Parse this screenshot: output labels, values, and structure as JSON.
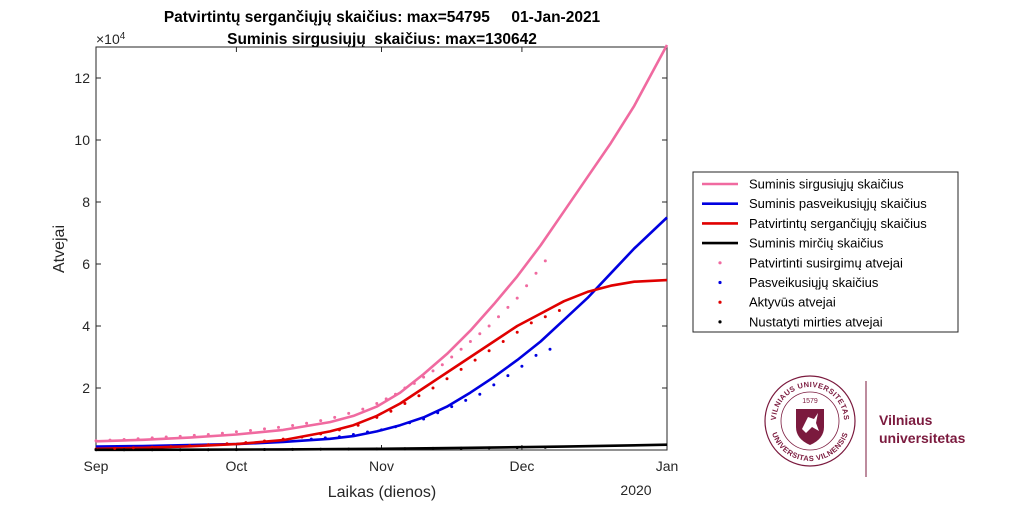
{
  "chart_data": {
    "type": "line",
    "title_line1": "Patvirtintų sergančiųjų skaičius: max=54795     01-Jan-2021",
    "title_line2": "Suminis sirgusiųjų  skaičius: max=130642",
    "xlabel": "Laikas (dienos)",
    "ylabel": "Atvejai",
    "x_year_label": "2020",
    "y_exponent_label": "×10",
    "y_exponent_power": "4",
    "x_ticks": [
      {
        "label": "Sep",
        "day": 0
      },
      {
        "label": "Oct",
        "day": 30
      },
      {
        "label": "Nov",
        "day": 61
      },
      {
        "label": "Dec",
        "day": 91
      },
      {
        "label": "Jan",
        "day": 122
      }
    ],
    "xlim_days": [
      0,
      122
    ],
    "ylim": [
      0,
      130000
    ],
    "y_ticks": [
      {
        "label": "2",
        "value": 20000
      },
      {
        "label": "4",
        "value": 40000
      },
      {
        "label": "6",
        "value": 60000
      },
      {
        "label": "8",
        "value": 80000
      },
      {
        "label": "10",
        "value": 100000
      },
      {
        "label": "12",
        "value": 120000
      }
    ],
    "grid": false,
    "legend_position": "right",
    "series": [
      {
        "name": "Suminis sirgusiųjų skaičius",
        "kind": "line",
        "color": "#f06aa0",
        "x": [
          0,
          10,
          20,
          30,
          40,
          50,
          55,
          60,
          65,
          70,
          75,
          80,
          85,
          90,
          95,
          100,
          105,
          110,
          115,
          122
        ],
        "y": [
          2800,
          3300,
          4000,
          5000,
          6500,
          9000,
          11000,
          14000,
          18500,
          24500,
          31000,
          38500,
          47000,
          56000,
          66000,
          77000,
          88000,
          99000,
          111000,
          130642
        ]
      },
      {
        "name": "Suminis pasveikusiųjų skaičius",
        "kind": "line",
        "color": "#0000e0",
        "x": [
          0,
          10,
          20,
          30,
          40,
          50,
          55,
          60,
          65,
          70,
          75,
          80,
          85,
          90,
          95,
          100,
          105,
          110,
          115,
          122
        ],
        "y": [
          1100,
          1300,
          1600,
          1900,
          2600,
          3600,
          4500,
          6000,
          8000,
          10500,
          14000,
          18500,
          23500,
          29000,
          35000,
          42000,
          49000,
          57000,
          65000,
          75000
        ]
      },
      {
        "name": "Patvirtintų sergančiųjų skaičius",
        "kind": "line",
        "color": "#e00000",
        "x": [
          0,
          10,
          20,
          30,
          40,
          50,
          55,
          60,
          65,
          70,
          75,
          80,
          85,
          90,
          95,
          100,
          105,
          110,
          115,
          122
        ],
        "y": [
          400,
          700,
          1200,
          1900,
          3200,
          6000,
          8000,
          11000,
          15000,
          20000,
          25000,
          30000,
          35000,
          40000,
          44000,
          48000,
          51000,
          53000,
          54300,
          54795
        ]
      },
      {
        "name": "Suminis mirčių skaičius",
        "kind": "line",
        "color": "#000000",
        "x": [
          0,
          20,
          40,
          60,
          80,
          100,
          122
        ],
        "y": [
          50,
          100,
          200,
          400,
          700,
          1100,
          1700
        ]
      },
      {
        "name": "Patvirtinti susirgimų atvejai",
        "kind": "scatter",
        "color": "#f06aa0",
        "x": [
          0,
          3,
          6,
          9,
          12,
          15,
          18,
          21,
          24,
          27,
          30,
          33,
          36,
          39,
          42,
          45,
          48,
          51,
          54,
          57,
          60,
          62,
          64,
          66,
          68,
          70,
          72,
          74,
          76,
          78,
          80,
          82,
          84,
          86,
          88,
          90,
          92,
          94,
          96
        ],
        "y": [
          3000,
          3200,
          3400,
          3600,
          3900,
          4200,
          4400,
          4700,
          5000,
          5400,
          5900,
          6300,
          6800,
          7300,
          7900,
          8600,
          9500,
          10500,
          11800,
          13200,
          15000,
          16500,
          18000,
          20000,
          21500,
          23500,
          25500,
          27500,
          30000,
          32500,
          35000,
          37500,
          40000,
          43000,
          46000,
          49000,
          53000,
          57000,
          61000
        ]
      },
      {
        "name": "Pasveikusiųjų skaičius",
        "kind": "scatter",
        "color": "#0000e0",
        "x": [
          46,
          49,
          52,
          55,
          58,
          61,
          64,
          67,
          70,
          73,
          76,
          79,
          82,
          85,
          88,
          91,
          94,
          97
        ],
        "y": [
          3500,
          3900,
          4300,
          5000,
          5800,
          6500,
          7500,
          8800,
          10000,
          12000,
          14000,
          16000,
          18000,
          21000,
          24000,
          27000,
          30500,
          32500
        ]
      },
      {
        "name": "Aktyvūs atvejai",
        "kind": "scatter",
        "color": "#e00000",
        "x": [
          0,
          4,
          8,
          12,
          16,
          20,
          24,
          28,
          32,
          36,
          40,
          44,
          48,
          52,
          56,
          60,
          63,
          66,
          69,
          72,
          75,
          78,
          81,
          84,
          87,
          90,
          93,
          96,
          99
        ],
        "y": [
          300,
          500,
          700,
          900,
          1100,
          1400,
          1700,
          2000,
          2400,
          2900,
          3500,
          4200,
          5200,
          6500,
          8000,
          10500,
          12500,
          15000,
          17500,
          20000,
          23000,
          26000,
          29000,
          32000,
          35000,
          38000,
          41000,
          43000,
          45000
        ]
      },
      {
        "name": "Nustatyti mirties atvejai",
        "kind": "scatter",
        "color": "#000000",
        "x": [
          0,
          6,
          12,
          18,
          24,
          30,
          36,
          42,
          48,
          54,
          60,
          66,
          72,
          78,
          84,
          90,
          96
        ],
        "y": [
          60,
          70,
          80,
          95,
          110,
          130,
          160,
          190,
          230,
          280,
          350,
          420,
          500,
          580,
          680,
          780,
          900
        ]
      }
    ]
  },
  "logo": {
    "name_line1": "Vilniaus",
    "name_line2": "universitetas",
    "seal_outer_top": "VILNIAUS UNIVERSITETAS",
    "seal_outer_bottom": "UNIVERSITAS VILNENSIS",
    "seal_year": "1579",
    "brand_color": "#7b1a3e"
  }
}
